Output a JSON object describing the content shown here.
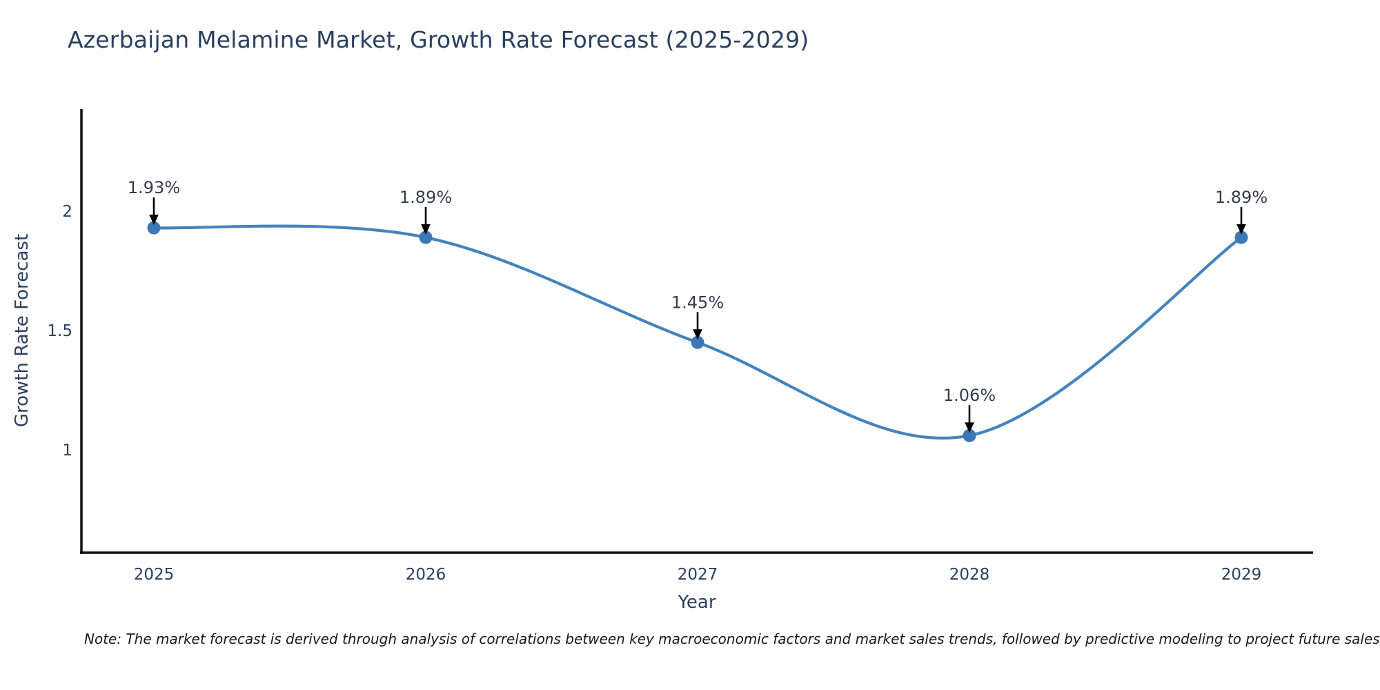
{
  "title": "Azerbaijan Melamine Market, Growth Rate Forecast (2025-2029)",
  "note": "Note: The market forecast is derived through analysis of correlations between key macroeconomic factors and market sales trends, followed by predictive modeling to project future sales",
  "colors": {
    "title_text": "#2a3f5f",
    "axis_text": "#2a3f5f",
    "annotation_text": "#333d4b",
    "line": "#4583bd",
    "marker": "#3b78b5",
    "axis_line": "#111111",
    "arrow": "#000000",
    "note_text": "#1a1a1a",
    "background": "#ffffff"
  },
  "chart_data": {
    "type": "line",
    "line_shape": "spline",
    "x": [
      2025,
      2026,
      2027,
      2028,
      2029
    ],
    "values": [
      1.93,
      1.89,
      1.45,
      1.06,
      1.89
    ],
    "point_labels": [
      "1.93%",
      "1.89%",
      "1.45%",
      "1.06%",
      "1.89%"
    ],
    "title": "Azerbaijan Melamine Market, Growth Rate Forecast (2025-2029)",
    "xlabel": "Year",
    "ylabel": "Growth Rate Forecast",
    "xticks": [
      "2025",
      "2026",
      "2027",
      "2028",
      "2029"
    ],
    "yticks": [
      2,
      1.5,
      1
    ],
    "ylim": [
      0.57,
      2.43
    ],
    "grid": false,
    "legend": false,
    "annotations": "black down arrows from each percentage label to its data point"
  }
}
